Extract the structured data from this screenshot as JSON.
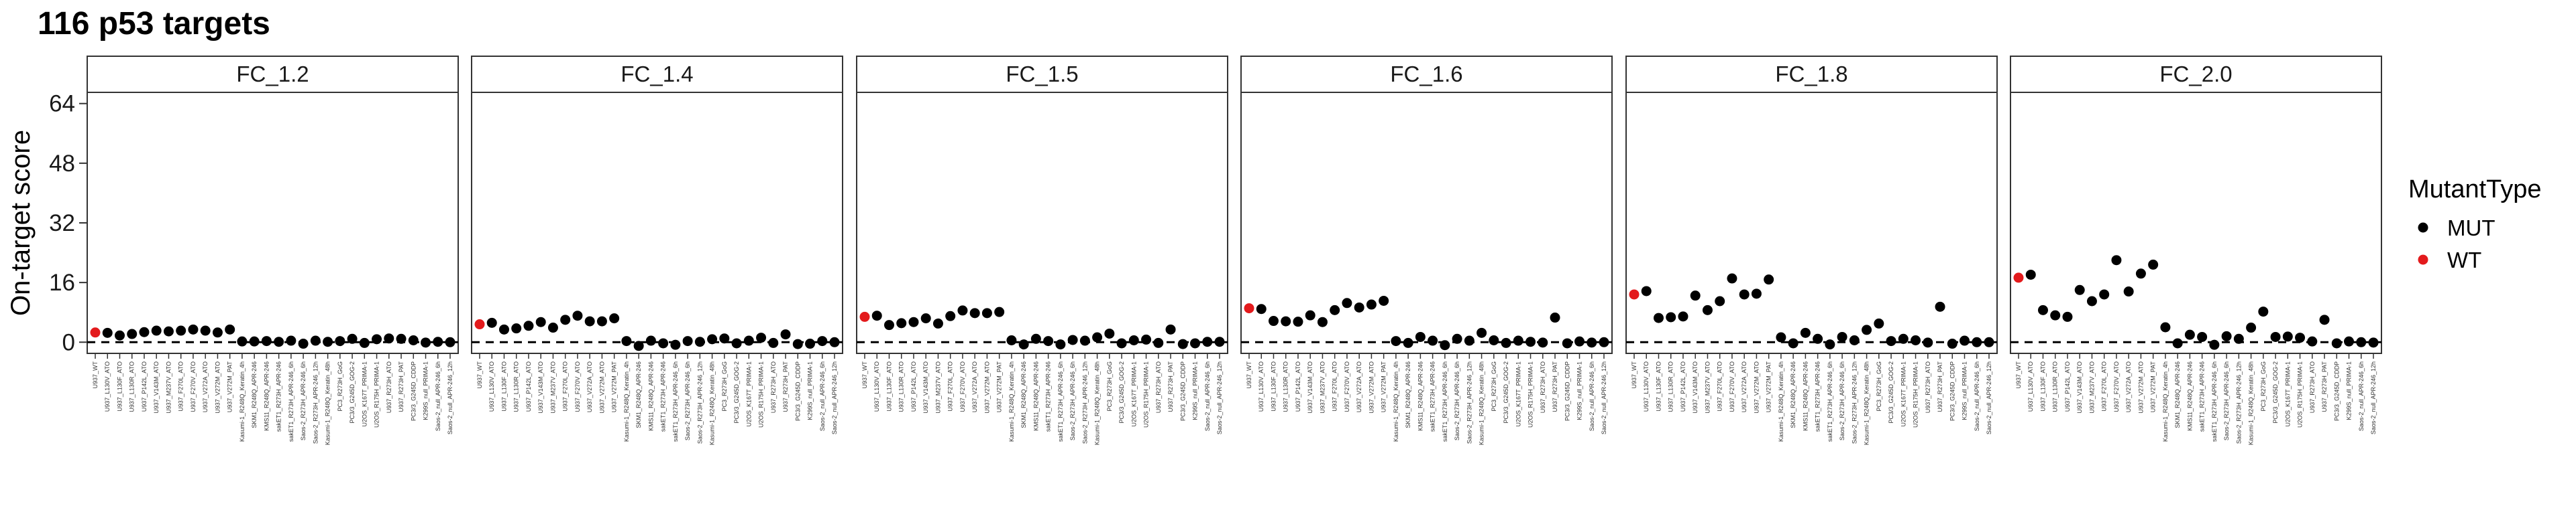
{
  "title": "116 p53 targets",
  "chart_data": {
    "type": "scatter",
    "title": "116 p53 targets",
    "ylabel": "On-target score",
    "xlabel": "",
    "y_ticks": [
      0,
      16,
      32,
      48,
      64
    ],
    "ylim": [
      -3,
      67
    ],
    "grid": false,
    "reference_line": {
      "y": 0,
      "style": "dashed"
    },
    "facets": [
      "FC_1.2",
      "FC_1.4",
      "FC_1.5",
      "FC_1.6",
      "FC_1.8",
      "FC_2.0"
    ],
    "categories": [
      "U937_WT",
      "U937_L130V_ATO",
      "U937_L130F_ATO",
      "U937_L130R_ATO",
      "U937_P142L_ATO",
      "U937_V143M_ATO",
      "U937_M237V_ATO",
      "U937_F270L_ATO",
      "U937_F270V_ATO",
      "U937_V272A_ATO",
      "U937_V272M_ATO",
      "U937_V272M_PAT",
      "Kasumi-1_R248Q_Keratin_4h",
      "SKM1_R248Q_APR-246",
      "KMS11_R248Q_APR-246",
      "sakET1_R273H_APR-246",
      "sakET1_R273H_APR-246_6h",
      "Saos-2_R273H_APR-246_6h",
      "Saos-2_R273H_APR-246_12h",
      "Kasumi-1_R248Q_Keratin_48h",
      "PC3_R273H_GoG",
      "PC3/3_G245D_GOG-2",
      "U2OS_K167T_PRIMA-1",
      "U2OS_R175H_PRIMA-1",
      "U937_R273H_ATO",
      "U937_R273H_PAT",
      "PC3/3_G245D_CDDP",
      "K299S_null_PRIMA-1",
      "Saos-2_null_APR-246_6h",
      "Saos-2_null_APR-246_12h"
    ],
    "legend": {
      "title": "MutantType",
      "position": "right",
      "entries": [
        {
          "label": "MUT",
          "color": "#000000"
        },
        {
          "label": "WT",
          "color": "#e31a1c"
        }
      ]
    },
    "point_types": [
      "WT",
      "MUT",
      "MUT",
      "MUT",
      "MUT",
      "MUT",
      "MUT",
      "MUT",
      "MUT",
      "MUT",
      "MUT",
      "MUT",
      "MUT",
      "MUT",
      "MUT",
      "MUT",
      "MUT",
      "MUT",
      "MUT",
      "MUT",
      "MUT",
      "MUT",
      "MUT",
      "MUT",
      "MUT",
      "MUT",
      "MUT",
      "MUT",
      "MUT",
      "MUT"
    ],
    "series": [
      {
        "name": "FC_1.2",
        "values": [
          2.6,
          2.5,
          1.8,
          2.2,
          2.7,
          3.1,
          2.9,
          3.1,
          3.4,
          3.1,
          2.6,
          3.4,
          0.2,
          0.2,
          0.3,
          0.1,
          0.4,
          -0.4,
          0.4,
          0.1,
          0.3,
          0.9,
          -0.2,
          0.8,
          1.0,
          0.9,
          0.5,
          -0.1,
          0.1,
          0.0
        ]
      },
      {
        "name": "FC_1.4",
        "values": [
          4.8,
          5.2,
          3.4,
          3.7,
          4.4,
          5.4,
          3.9,
          6.0,
          7.1,
          5.6,
          5.6,
          6.4,
          0.3,
          -1.0,
          0.4,
          -0.3,
          -0.7,
          0.3,
          0.1,
          0.8,
          1.0,
          -0.3,
          0.4,
          1.2,
          -0.2,
          2.1,
          -0.5,
          -0.4,
          0.3,
          0.0
        ]
      },
      {
        "name": "FC_1.5",
        "values": [
          6.8,
          7.1,
          4.6,
          5.1,
          5.4,
          6.4,
          5.0,
          7.0,
          8.5,
          7.8,
          7.8,
          8.1,
          0.5,
          -0.6,
          0.9,
          0.3,
          -0.6,
          0.6,
          0.4,
          1.3,
          2.3,
          -0.3,
          0.5,
          0.7,
          -0.2,
          3.4,
          -0.5,
          -0.3,
          0.1,
          0.1
        ]
      },
      {
        "name": "FC_1.6",
        "values": [
          9.1,
          8.9,
          5.7,
          5.6,
          5.5,
          7.2,
          5.4,
          8.6,
          10.5,
          9.3,
          10.1,
          11.1,
          0.3,
          -0.2,
          1.4,
          0.4,
          -0.8,
          0.9,
          0.4,
          2.5,
          0.5,
          -0.2,
          0.4,
          0.1,
          -0.1,
          6.6,
          -0.3,
          0.2,
          -0.1,
          0.0
        ]
      },
      {
        "name": "FC_1.8",
        "values": [
          12.8,
          13.7,
          6.5,
          6.7,
          6.9,
          12.5,
          8.6,
          11.0,
          17.1,
          12.8,
          13.0,
          16.8,
          1.3,
          -0.3,
          2.5,
          0.9,
          -0.6,
          1.4,
          0.5,
          3.3,
          5.0,
          0.3,
          0.9,
          0.5,
          -0.1,
          9.5,
          -0.4,
          0.4,
          0.0,
          0.0
        ]
      },
      {
        "name": "FC_2.0",
        "values": [
          17.3,
          18.1,
          8.6,
          7.2,
          6.8,
          14.0,
          11.0,
          12.8,
          22.0,
          13.6,
          18.4,
          20.8,
          4.0,
          -0.3,
          2.0,
          1.4,
          -0.7,
          1.6,
          0.9,
          3.9,
          8.2,
          1.4,
          1.5,
          1.2,
          0.2,
          6.0,
          -0.3,
          0.2,
          0.0,
          -0.1
        ]
      }
    ]
  }
}
